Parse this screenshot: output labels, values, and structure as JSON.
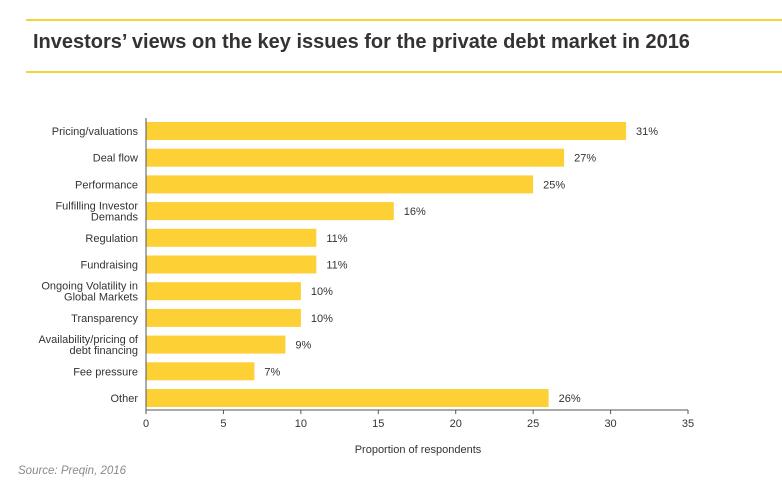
{
  "header": {
    "title": "Investors’ views on the key issues for the private debt market in 2016"
  },
  "colors": {
    "bar": "#fdd035",
    "accent_rule": "#f5d23e",
    "axis": "#555555",
    "text": "#333333"
  },
  "chart_data": {
    "type": "bar",
    "orientation": "horizontal",
    "title": "Investors’ views on the key issues for the private debt market in 2016",
    "categories": [
      "Pricing/valuations",
      "Deal flow",
      "Performance",
      "Fulfilling Investor Demands",
      "Regulation",
      "Fundraising",
      "Ongoing Volatility in Global Markets",
      "Transparency",
      "Availability/pricing of debt financing",
      "Fee pressure",
      "Other"
    ],
    "category_label_lines": [
      [
        "Pricing/valuations"
      ],
      [
        "Deal flow"
      ],
      [
        "Performance"
      ],
      [
        "Fulfilling Investor",
        "Demands"
      ],
      [
        "Regulation"
      ],
      [
        "Fundraising"
      ],
      [
        "Ongoing Volatility in",
        "Global Markets"
      ],
      [
        "Transparency"
      ],
      [
        "Availability/pricing of",
        "debt financing"
      ],
      [
        "Fee pressure"
      ],
      [
        "Other"
      ]
    ],
    "values": [
      31,
      27,
      25,
      16,
      11,
      11,
      10,
      10,
      9,
      7,
      26
    ],
    "data_labels": [
      "31%",
      "27%",
      "25%",
      "16%",
      "11%",
      "11%",
      "10%",
      "10%",
      "9%",
      "7%",
      "26%"
    ],
    "xlabel": "Proportion of respondents",
    "ylabel": "",
    "xlim": [
      0,
      35
    ],
    "xticks": [
      0,
      5,
      10,
      15,
      20,
      25,
      30,
      35
    ],
    "grid": false,
    "legend": "none"
  },
  "footer": {
    "source": "Source: Preqin, 2016"
  }
}
